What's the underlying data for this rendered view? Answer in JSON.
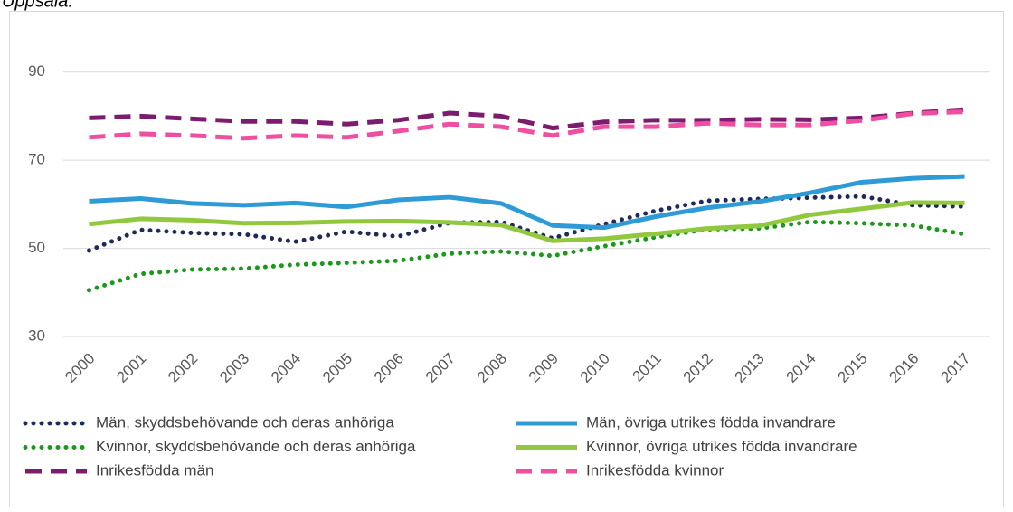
{
  "chart_data": {
    "type": "line",
    "title": "Uppsala.",
    "categories": [
      "2000",
      "2001",
      "2002",
      "2003",
      "2004",
      "2005",
      "2006",
      "2007",
      "2008",
      "2009",
      "2010",
      "2011",
      "2012",
      "2013",
      "2014",
      "2015",
      "2016",
      "2017"
    ],
    "ylim": [
      30,
      100
    ],
    "yticks": [
      30,
      50,
      70,
      90
    ],
    "grid": true,
    "series": [
      {
        "name": "Män, skyddsbehövande och deras anhöriga",
        "color": "#1f2a5c",
        "style": "dotted",
        "values": [
          49.5,
          54.2,
          53.5,
          53.2,
          51.5,
          53.8,
          52.7,
          55.8,
          56.0,
          52.3,
          55.5,
          58.5,
          60.8,
          61.2,
          61.5,
          61.8,
          59.8,
          59.5
        ]
      },
      {
        "name": "Män, övriga utrikes födda invandrare",
        "color": "#2e9bd6",
        "style": "solid",
        "values": [
          60.7,
          61.3,
          60.2,
          59.8,
          60.3,
          59.4,
          61.0,
          61.6,
          60.2,
          55.2,
          54.7,
          57.2,
          59.2,
          60.6,
          62.6,
          65.0,
          65.9,
          66.3
        ]
      },
      {
        "name": "Kvinnor, skyddsbehövande och deras anhöriga",
        "color": "#1a9a1a",
        "style": "dotted",
        "values": [
          40.5,
          44.2,
          45.2,
          45.4,
          46.3,
          46.7,
          47.2,
          48.8,
          49.3,
          48.3,
          50.5,
          52.5,
          54.3,
          54.5,
          56.0,
          55.7,
          55.2,
          53.2
        ]
      },
      {
        "name": "Kvinnor, övriga utrikes födda invandrare",
        "color": "#92c83e",
        "style": "solid",
        "values": [
          55.5,
          56.7,
          56.4,
          55.7,
          55.8,
          56.1,
          56.2,
          55.9,
          55.3,
          51.7,
          52.2,
          53.3,
          54.5,
          55.1,
          57.6,
          59.0,
          60.4,
          60.3
        ]
      },
      {
        "name": "Inrikesfödda män",
        "color": "#7b1c6e",
        "style": "dashed",
        "values": [
          79.6,
          80.0,
          79.4,
          78.8,
          78.8,
          78.2,
          79.1,
          80.7,
          80.0,
          77.3,
          78.7,
          79.1,
          79.1,
          79.3,
          79.2,
          79.6,
          80.7,
          81.5
        ]
      },
      {
        "name": "Inrikesfödda kvinnor",
        "color": "#f04ea0",
        "style": "dashed",
        "values": [
          75.2,
          76.0,
          75.6,
          75.0,
          75.6,
          75.2,
          76.6,
          78.2,
          77.6,
          75.6,
          77.6,
          77.6,
          78.4,
          78.0,
          78.0,
          79.0,
          80.6,
          81.0
        ]
      }
    ]
  }
}
